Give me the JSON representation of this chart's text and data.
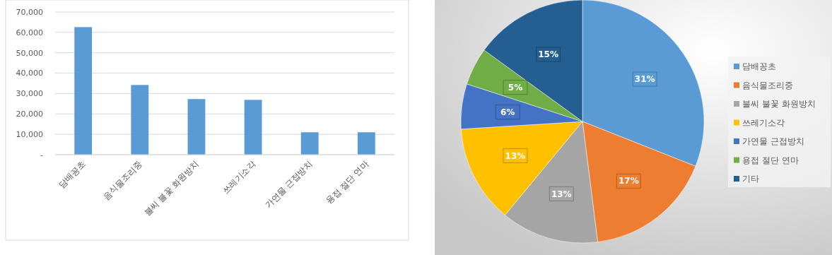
{
  "chart_data": [
    {
      "type": "bar",
      "categories": [
        "담배꽁초",
        "음식물조리중",
        "불씨 불꽃 화원방치",
        "쓰레기소각",
        "가연물 근접방치",
        "용접 절단 연마"
      ],
      "values": [
        62600,
        34200,
        27300,
        26900,
        11000,
        11000
      ],
      "color": "#5b9bd5",
      "ylim": [
        0,
        70000
      ],
      "yticks": [
        {
          "value": 0,
          "label": "-"
        },
        {
          "value": 10000,
          "label": "10,000"
        },
        {
          "value": 20000,
          "label": "20,000"
        },
        {
          "value": 30000,
          "label": "30,000"
        },
        {
          "value": 40000,
          "label": "40,000"
        },
        {
          "value": 50000,
          "label": "50,000"
        },
        {
          "value": 60000,
          "label": "60,000"
        },
        {
          "value": 70000,
          "label": "70,000"
        }
      ],
      "grid": "y"
    },
    {
      "type": "pie",
      "categories": [
        "담배꽁초",
        "음식물조리중",
        "불씨 불꽃 화원방치",
        "쓰레기소각",
        "가연물 근접방치",
        "용접 절단 연마",
        "기타"
      ],
      "values": [
        31,
        17,
        13,
        13,
        6,
        5,
        15
      ],
      "colors": [
        "#5b9bd5",
        "#ed7d31",
        "#a5a5a5",
        "#ffc000",
        "#4472c4",
        "#70ad47",
        "#255e91"
      ],
      "value_labels": [
        "31%",
        "17%",
        "13%",
        "13%",
        "6%",
        "5%",
        "15%"
      ],
      "legend": "right"
    }
  ]
}
